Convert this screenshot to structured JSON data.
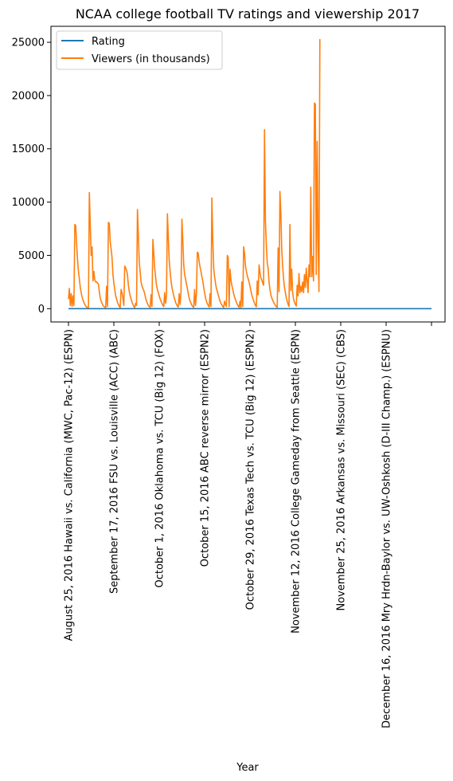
{
  "chart_data": {
    "type": "line",
    "title": "NCAA college football TV ratings and viewership 2017",
    "xlabel": "Year",
    "ylabel": "",
    "x_count": 400,
    "ylim": [
      -1250,
      26500
    ],
    "y_ticks": [
      0,
      5000,
      10000,
      15000,
      20000,
      25000
    ],
    "x_tick_labels": [
      "August 25, 2016 Hawaii vs. California (MWC, Pac-12) (ESPN)",
      "September 17, 2016 FSU vs. Louisville (ACC) (ABC)",
      "October 1, 2016 Oklahoma vs. TCU (Big 12) (FOX)",
      "October 15, 2016 ABC reverse mirror (ESPN2)",
      "October 29, 2016 Texas Tech vs. TCU (Big 12) (ESPN2)",
      "November 12, 2016 College Gameday from Seattle (ESPN)",
      "November 25, 2016 Arkansas vs. Missouri (SEC) (CBS)",
      "December 16, 2016 Mry Hrdn-Baylor vs. UW-Oshkosh (D-III Champ.) (ESPNU)",
      ""
    ],
    "x_tick_positions": [
      0,
      50,
      100,
      150,
      200,
      250,
      300,
      350,
      400
    ],
    "legend_position": "top-left",
    "series": [
      {
        "name": "Rating",
        "color": "#1f77b4",
        "points": [
          [
            0,
            1
          ],
          [
            400,
            1
          ]
        ]
      },
      {
        "name": "Viewers (in thousands)",
        "color": "#ff7f0e",
        "points": [
          [
            0,
            900
          ],
          [
            1,
            1900
          ],
          [
            2,
            300
          ],
          [
            3,
            1400
          ],
          [
            4,
            200
          ],
          [
            5,
            1200
          ],
          [
            6,
            300
          ],
          [
            7,
            7900
          ],
          [
            8,
            7800
          ],
          [
            9,
            6000
          ],
          [
            10,
            4600
          ],
          [
            11,
            3500
          ],
          [
            12,
            2800
          ],
          [
            13,
            2000
          ],
          [
            14,
            1500
          ],
          [
            15,
            1100
          ],
          [
            16,
            800
          ],
          [
            17,
            600
          ],
          [
            18,
            400
          ],
          [
            19,
            250
          ],
          [
            20,
            150
          ],
          [
            21,
            100
          ],
          [
            22,
            80
          ],
          [
            23,
            10900
          ],
          [
            24,
            8000
          ],
          [
            25,
            5000
          ],
          [
            26,
            5800
          ],
          [
            27,
            2600
          ],
          [
            28,
            3500
          ],
          [
            29,
            2700
          ],
          [
            30,
            2500
          ],
          [
            31,
            2500
          ],
          [
            32,
            2400
          ],
          [
            33,
            2300
          ],
          [
            34,
            1600
          ],
          [
            35,
            1000
          ],
          [
            36,
            700
          ],
          [
            37,
            500
          ],
          [
            38,
            300
          ],
          [
            39,
            200
          ],
          [
            40,
            150
          ],
          [
            41,
            100
          ],
          [
            42,
            2100
          ],
          [
            43,
            200
          ],
          [
            44,
            8100
          ],
          [
            45,
            8000
          ],
          [
            46,
            6300
          ],
          [
            47,
            5600
          ],
          [
            48,
            4800
          ],
          [
            49,
            3200
          ],
          [
            50,
            2400
          ],
          [
            51,
            1800
          ],
          [
            52,
            1200
          ],
          [
            53,
            900
          ],
          [
            54,
            600
          ],
          [
            55,
            400
          ],
          [
            56,
            200
          ],
          [
            57,
            100
          ],
          [
            58,
            1800
          ],
          [
            59,
            1500
          ],
          [
            60,
            1000
          ],
          [
            61,
            300
          ],
          [
            62,
            4000
          ],
          [
            63,
            3800
          ],
          [
            64,
            3600
          ],
          [
            65,
            3200
          ],
          [
            66,
            2200
          ],
          [
            67,
            1600
          ],
          [
            68,
            1200
          ],
          [
            69,
            900
          ],
          [
            70,
            600
          ],
          [
            71,
            400
          ],
          [
            72,
            200
          ],
          [
            73,
            100
          ],
          [
            74,
            500
          ],
          [
            75,
            300
          ],
          [
            76,
            9300
          ],
          [
            77,
            7000
          ],
          [
            78,
            4300
          ],
          [
            79,
            3500
          ],
          [
            80,
            2500
          ],
          [
            81,
            2100
          ],
          [
            82,
            1900
          ],
          [
            83,
            1700
          ],
          [
            84,
            1400
          ],
          [
            85,
            1000
          ],
          [
            86,
            700
          ],
          [
            87,
            500
          ],
          [
            88,
            300
          ],
          [
            89,
            200
          ],
          [
            90,
            100
          ],
          [
            91,
            1300
          ],
          [
            92,
            200
          ],
          [
            93,
            6500
          ],
          [
            94,
            5200
          ],
          [
            95,
            3800
          ],
          [
            96,
            3000
          ],
          [
            97,
            2200
          ],
          [
            98,
            1800
          ],
          [
            99,
            1500
          ],
          [
            100,
            1200
          ],
          [
            101,
            900
          ],
          [
            102,
            700
          ],
          [
            103,
            500
          ],
          [
            104,
            300
          ],
          [
            105,
            200
          ],
          [
            106,
            1500
          ],
          [
            107,
            500
          ],
          [
            108,
            1200
          ],
          [
            109,
            8900
          ],
          [
            110,
            6800
          ],
          [
            111,
            4500
          ],
          [
            112,
            3500
          ],
          [
            113,
            2600
          ],
          [
            114,
            2000
          ],
          [
            115,
            1600
          ],
          [
            116,
            1200
          ],
          [
            117,
            900
          ],
          [
            118,
            600
          ],
          [
            119,
            400
          ],
          [
            120,
            250
          ],
          [
            121,
            150
          ],
          [
            122,
            1400
          ],
          [
            123,
            400
          ],
          [
            124,
            1600
          ],
          [
            125,
            8400
          ],
          [
            126,
            6400
          ],
          [
            127,
            4100
          ],
          [
            128,
            3200
          ],
          [
            129,
            2800
          ],
          [
            130,
            2300
          ],
          [
            131,
            1900
          ],
          [
            132,
            1400
          ],
          [
            133,
            1000
          ],
          [
            134,
            700
          ],
          [
            135,
            500
          ],
          [
            136,
            300
          ],
          [
            137,
            200
          ],
          [
            138,
            120
          ],
          [
            139,
            1800
          ],
          [
            140,
            300
          ],
          [
            141,
            1400
          ],
          [
            142,
            5300
          ],
          [
            143,
            5200
          ],
          [
            144,
            4400
          ],
          [
            145,
            3900
          ],
          [
            146,
            3500
          ],
          [
            147,
            3000
          ],
          [
            148,
            2600
          ],
          [
            149,
            2000
          ],
          [
            150,
            1500
          ],
          [
            151,
            1000
          ],
          [
            152,
            700
          ],
          [
            153,
            450
          ],
          [
            154,
            300
          ],
          [
            155,
            150
          ],
          [
            156,
            1400
          ],
          [
            157,
            200
          ],
          [
            158,
            10400
          ],
          [
            159,
            6500
          ],
          [
            160,
            3800
          ],
          [
            161,
            3000
          ],
          [
            162,
            2400
          ],
          [
            163,
            1900
          ],
          [
            164,
            1600
          ],
          [
            165,
            1300
          ],
          [
            166,
            1000
          ],
          [
            167,
            700
          ],
          [
            168,
            500
          ],
          [
            169,
            350
          ],
          [
            170,
            200
          ],
          [
            171,
            120
          ],
          [
            172,
            700
          ],
          [
            173,
            400
          ],
          [
            174,
            200
          ],
          [
            175,
            5000
          ],
          [
            176,
            4800
          ],
          [
            177,
            200
          ],
          [
            178,
            3700
          ],
          [
            179,
            2700
          ],
          [
            180,
            2200
          ],
          [
            181,
            1800
          ],
          [
            182,
            1400
          ],
          [
            183,
            1100
          ],
          [
            184,
            850
          ],
          [
            185,
            600
          ],
          [
            186,
            400
          ],
          [
            187,
            250
          ],
          [
            188,
            120
          ],
          [
            189,
            700
          ],
          [
            190,
            100
          ],
          [
            191,
            2500
          ],
          [
            192,
            200
          ],
          [
            193,
            5800
          ],
          [
            194,
            5200
          ],
          [
            195,
            4000
          ],
          [
            196,
            3500
          ],
          [
            197,
            3100
          ],
          [
            198,
            2800
          ],
          [
            199,
            2500
          ],
          [
            200,
            2100
          ],
          [
            201,
            1700
          ],
          [
            202,
            1300
          ],
          [
            203,
            1000
          ],
          [
            204,
            750
          ],
          [
            205,
            500
          ],
          [
            206,
            300
          ],
          [
            207,
            180
          ],
          [
            208,
            2600
          ],
          [
            209,
            1300
          ],
          [
            210,
            4100
          ],
          [
            211,
            3400
          ],
          [
            212,
            2900
          ],
          [
            213,
            2700
          ],
          [
            214,
            2400
          ],
          [
            215,
            2200
          ],
          [
            216,
            16800
          ],
          [
            217,
            8300
          ],
          [
            218,
            6000
          ],
          [
            219,
            4300
          ],
          [
            220,
            3800
          ],
          [
            221,
            2500
          ],
          [
            222,
            1800
          ],
          [
            223,
            1300
          ],
          [
            224,
            1000
          ],
          [
            225,
            800
          ],
          [
            226,
            600
          ],
          [
            227,
            450
          ],
          [
            228,
            300
          ],
          [
            229,
            200
          ],
          [
            230,
            120
          ],
          [
            231,
            5700
          ],
          [
            232,
            1600
          ],
          [
            233,
            11000
          ],
          [
            234,
            9000
          ],
          [
            235,
            5500
          ],
          [
            236,
            4000
          ],
          [
            237,
            2800
          ],
          [
            238,
            2000
          ],
          [
            239,
            1500
          ],
          [
            240,
            1000
          ],
          [
            241,
            700
          ],
          [
            242,
            400
          ],
          [
            243,
            200
          ],
          [
            244,
            7900
          ],
          [
            245,
            1700
          ],
          [
            246,
            3700
          ],
          [
            247,
            1500
          ],
          [
            248,
            900
          ],
          [
            249,
            600
          ],
          [
            250,
            400
          ],
          [
            251,
            250
          ],
          [
            252,
            2200
          ],
          [
            253,
            1200
          ],
          [
            254,
            3300
          ],
          [
            255,
            1500
          ],
          [
            256,
            2100
          ],
          [
            257,
            1600
          ],
          [
            258,
            2500
          ],
          [
            259,
            1500
          ],
          [
            260,
            3200
          ],
          [
            261,
            2000
          ],
          [
            262,
            3800
          ],
          [
            263,
            2600
          ],
          [
            264,
            1500
          ],
          [
            265,
            4100
          ],
          [
            266,
            3000
          ],
          [
            267,
            11400
          ],
          [
            268,
            3000
          ],
          [
            269,
            4900
          ],
          [
            270,
            2600
          ],
          [
            271,
            19300
          ],
          [
            272,
            19200
          ],
          [
            273,
            3200
          ],
          [
            274,
            15700
          ],
          [
            275,
            6200
          ],
          [
            276,
            1600
          ],
          [
            277,
            25300
          ]
        ]
      }
    ]
  }
}
